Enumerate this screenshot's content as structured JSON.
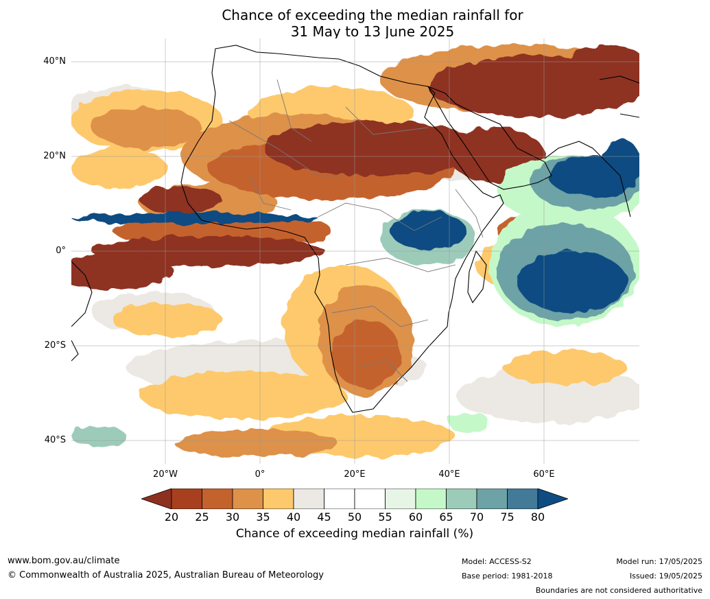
{
  "title": {
    "line1": "Chance of exceeding the median rainfall for",
    "line2": "31 May to 13 June 2025"
  },
  "map": {
    "lat_labels": [
      "40°N",
      "20°N",
      "0°",
      "20°S",
      "40°S"
    ],
    "lon_labels": [
      "20°W",
      "0°",
      "20°E",
      "40°E",
      "60°E"
    ]
  },
  "colorbar": {
    "ticks": [
      "20",
      "25",
      "30",
      "35",
      "40",
      "45",
      "50",
      "55",
      "60",
      "65",
      "70",
      "75",
      "80"
    ],
    "colors": [
      "#8e3020",
      "#a8401f",
      "#c4622e",
      "#de9148",
      "#fdc96c",
      "#ece9e4",
      "#ffffff",
      "#ffffff",
      "#e7f5e7",
      "#c4f8c8",
      "#9dcbba",
      "#6da2a6",
      "#427a98",
      "#0f4c82"
    ],
    "label": "Chance of exceeding median rainfall (%)"
  },
  "footer": {
    "url": "www.bom.gov.au/climate",
    "copyright": "© Commonwealth of Australia 2025, Australian Bureau of Meteorology",
    "model": "Model: ACCESS-S2",
    "base_period": "Base period: 1981-2018",
    "model_run": "Model run: 17/05/2025",
    "issued": "Issued: 19/05/2025",
    "boundaries": "Boundaries are not considered authoritative"
  }
}
